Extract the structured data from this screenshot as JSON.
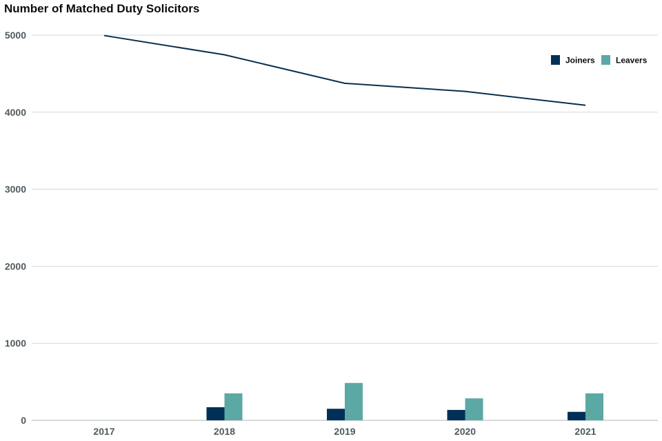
{
  "chart_data": {
    "type": "bar",
    "title": "Number of Matched Duty Solicitors",
    "categories": [
      "2017",
      "2018",
      "2019",
      "2020",
      "2021"
    ],
    "ylim": [
      0,
      5000
    ],
    "yticks": [
      0,
      1000,
      2000,
      3000,
      4000,
      5000
    ],
    "grid": true,
    "legend_position": "top-right",
    "series": [
      {
        "name": "Joiners",
        "type": "bar",
        "color": "#003057",
        "values": [
          null,
          170,
          150,
          135,
          110
        ]
      },
      {
        "name": "Leavers",
        "type": "bar",
        "color": "#5ba8a4",
        "values": [
          null,
          350,
          485,
          285,
          350
        ]
      },
      {
        "type": "line",
        "color": "#082f4f",
        "values": [
          4995,
          4745,
          4375,
          4270,
          4090
        ]
      }
    ]
  }
}
